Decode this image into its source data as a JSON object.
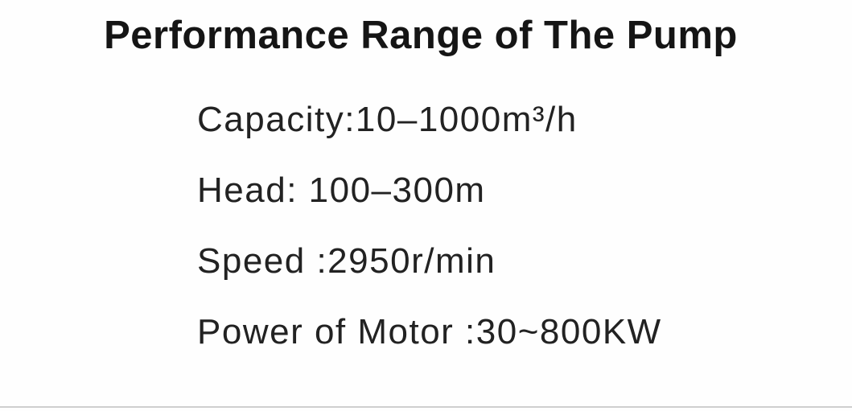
{
  "title": "Performance Range of The Pump",
  "specs": [
    {
      "text": "Capacity:10–1000m³/h"
    },
    {
      "text": "Head: 100–300m"
    },
    {
      "text": "Speed :2950r/min"
    },
    {
      "text": "Power of Motor :30~800KW"
    }
  ]
}
